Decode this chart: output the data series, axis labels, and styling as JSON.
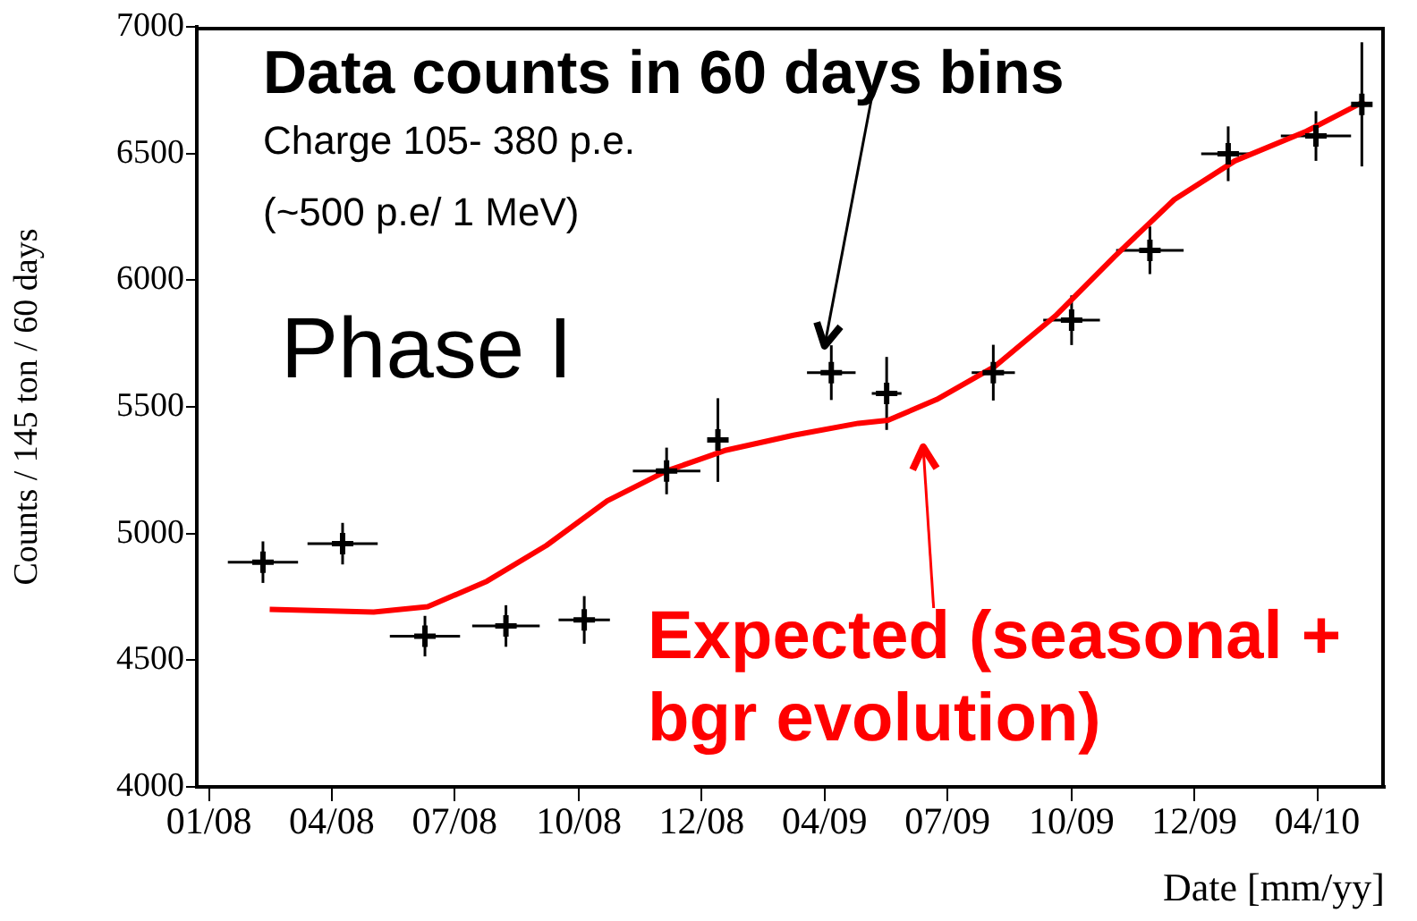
{
  "chart_data": {
    "type": "scatter",
    "xlabel": "Date [mm/yy]",
    "ylabel": "Counts / 145 ton / 60 days",
    "xlim": [
      "2007-12-23",
      "2010-05-21"
    ],
    "xticks": [
      {
        "value": "2008-01-01",
        "label": "01/08"
      },
      {
        "value": "2008-04-01",
        "label": "04/08"
      },
      {
        "value": "2008-07-01",
        "label": "07/08"
      },
      {
        "value": "2008-10-01",
        "label": "10/08"
      },
      {
        "value": "2008-12-31",
        "label": "12/08"
      },
      {
        "value": "2009-04-01",
        "label": "04/09"
      },
      {
        "value": "2009-07-01",
        "label": "07/09"
      },
      {
        "value": "2009-10-01",
        "label": "10/09"
      },
      {
        "value": "2009-12-31",
        "label": "12/09"
      },
      {
        "value": "2010-04-01",
        "label": "04/10"
      }
    ],
    "ylim": [
      4000,
      7000
    ],
    "yticks": [
      4000,
      4500,
      5000,
      5500,
      6000,
      6500,
      7000
    ],
    "grid": false,
    "legend": false,
    "series": [
      {
        "type": "scatter",
        "marker": "cross",
        "color": "#000000",
        "x": [
          "2008-02-10",
          "2008-04-09",
          "2008-06-09",
          "2008-08-08",
          "2008-10-05",
          "2008-12-05",
          "2009-01-12",
          "2009-04-06",
          "2009-05-17",
          "2009-08-04",
          "2009-10-01",
          "2009-11-28",
          "2010-01-25",
          "2010-03-31",
          "2010-05-04"
        ],
        "values": [
          4887,
          4960,
          4595,
          4635,
          4659,
          5247,
          5369,
          5635,
          5553,
          5635,
          5842,
          6118,
          6499,
          6569,
          6694
        ],
        "errors": [
          82,
          82,
          80,
          82,
          94,
          92,
          165,
          108,
          144,
          110,
          98,
          94,
          108,
          98,
          245
        ],
        "xerrors": [
          26,
          26,
          26,
          25,
          19,
          25,
          6,
          18,
          11,
          16,
          21,
          25,
          20,
          26,
          null
        ]
      },
      {
        "type": "line",
        "marker": "none",
        "color": "#ff0000",
        "x": [
          "2008-02-15",
          "2008-05-02",
          "2008-06-11",
          "2008-07-25",
          "2008-09-07",
          "2008-10-22",
          "2008-12-05",
          "2009-01-18",
          "2009-03-09",
          "2009-04-26",
          "2009-05-18",
          "2009-06-23",
          "2009-08-05",
          "2009-09-19",
          "2009-11-02",
          "2009-12-16",
          "2010-01-30",
          "2010-03-24",
          "2010-05-06"
        ],
        "values": [
          4701,
          4690,
          4711,
          4812,
          4953,
          5129,
          5247,
          5329,
          5388,
          5435,
          5447,
          5529,
          5659,
          5859,
          6094,
          6318,
          6471,
          6588,
          6706
        ]
      }
    ],
    "annotations": [
      {
        "text": "Data counts in 60 days bins",
        "x": "2009-04-01",
        "y": 5740
      },
      "Charge 105- 380 p.e.",
      "(~500 p.e/ 1 MeV)",
      "Phase I",
      "Expected (seasonal + bgr evolution)"
    ]
  }
}
